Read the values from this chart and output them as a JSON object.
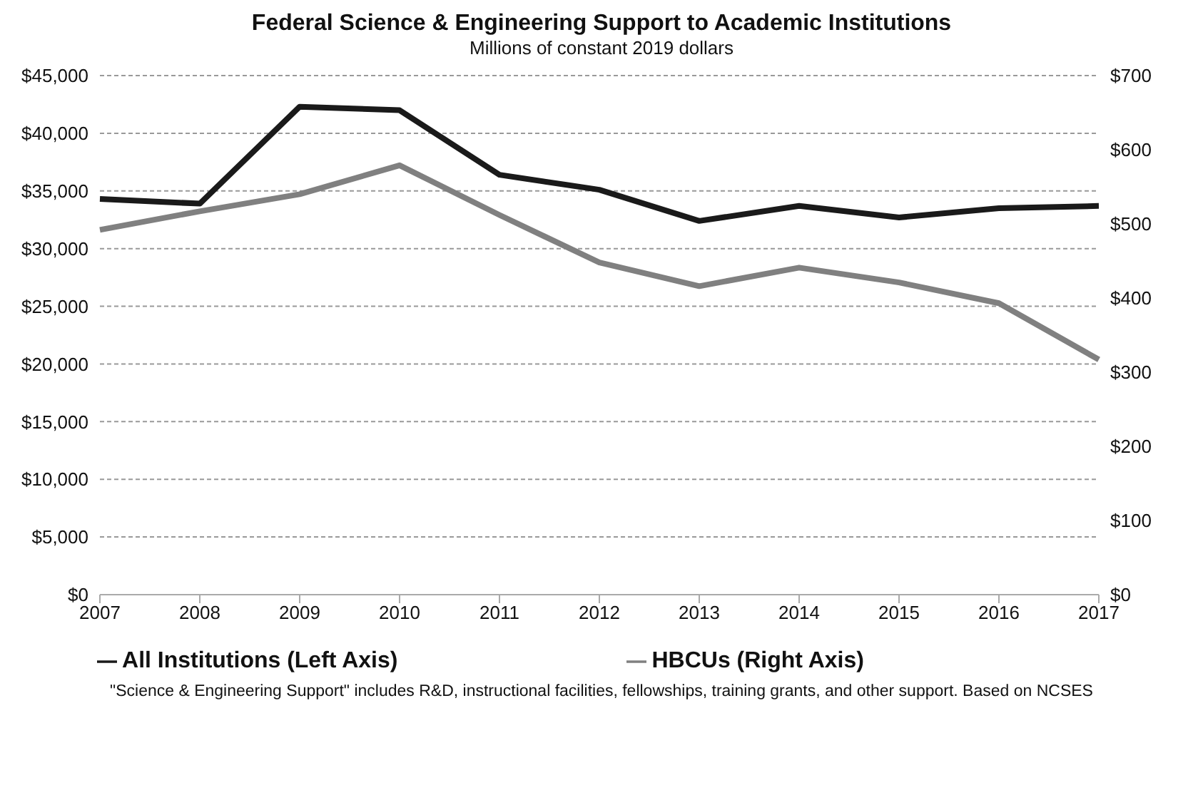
{
  "chart_data": {
    "type": "line",
    "title": "Federal Science & Engineering Support to Academic Institutions",
    "subtitle": "Millions of constant 2019 dollars",
    "categories": [
      "2007",
      "2008",
      "2009",
      "2010",
      "2011",
      "2012",
      "2013",
      "2014",
      "2015",
      "2016",
      "2017"
    ],
    "series": [
      {
        "name": "All Institutions (Left Axis)",
        "color": "#1a1a1a",
        "values": [
          34300,
          33900,
          42300,
          42000,
          36400,
          35100,
          32400,
          33700,
          32700,
          33500,
          33700
        ]
      },
      {
        "name": "HBCUs (Right Axis)",
        "color": "#808080",
        "axis": "y2",
        "values": [
          492,
          517,
          540,
          579,
          512,
          448,
          416,
          441,
          421,
          393,
          317
        ]
      }
    ],
    "ylim": [
      0,
      45000
    ],
    "yticks": [
      {
        "value": 0,
        "label": "$0"
      },
      {
        "value": 5000,
        "label": "$5,000"
      },
      {
        "value": 10000,
        "label": "$10,000"
      },
      {
        "value": 15000,
        "label": "$15,000"
      },
      {
        "value": 20000,
        "label": "$20,000"
      },
      {
        "value": 25000,
        "label": "$25,000"
      },
      {
        "value": 30000,
        "label": "$30,000"
      },
      {
        "value": 35000,
        "label": "$35,000"
      },
      {
        "value": 40000,
        "label": "$40,000"
      },
      {
        "value": 45000,
        "label": "$45,000"
      }
    ],
    "y2lim": [
      0,
      700
    ],
    "y2ticks": [
      {
        "value": 0,
        "label": "$0"
      },
      {
        "value": 100,
        "label": "$100"
      },
      {
        "value": 200,
        "label": "$200"
      },
      {
        "value": 300,
        "label": "$300"
      },
      {
        "value": 400,
        "label": "$400"
      },
      {
        "value": 500,
        "label": "$500"
      },
      {
        "value": 600,
        "label": "$600"
      },
      {
        "value": 700,
        "label": "$700"
      }
    ],
    "grid": "y",
    "legend": "bottom",
    "marker": "none",
    "line_style": "solid",
    "annotations": [
      "\"Science & Engineering Support\" includes R&D, instructional facilities, fellowships, training grants, and other support. Based on NCSES"
    ]
  }
}
